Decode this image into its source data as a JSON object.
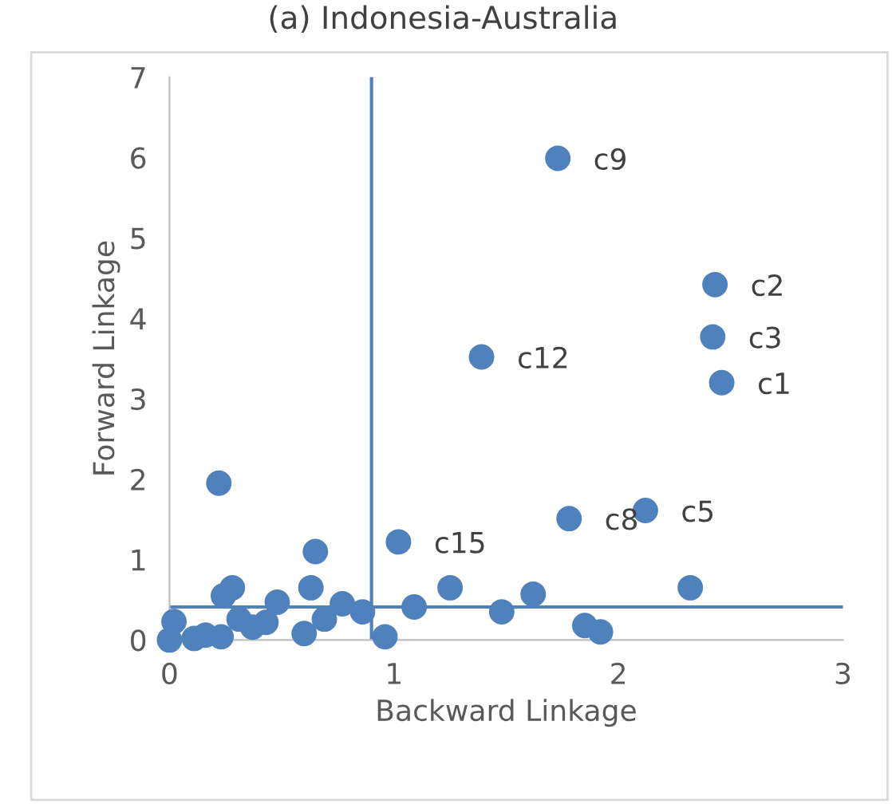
{
  "chart_data": {
    "type": "scatter",
    "title": "(a) Indonesia-Australia",
    "xlabel": "Backward Linkage",
    "ylabel": "Forward Linkage",
    "x": [
      1.73,
      2.43,
      2.42,
      2.46,
      1.39,
      2.12,
      1.78,
      1.02,
      2.32,
      1.62,
      1.85,
      1.92,
      1.25,
      1.09,
      1.48,
      0.96,
      0.86,
      0.77,
      0.69,
      0.6,
      0.63,
      0.65,
      0.48,
      0.43,
      0.37,
      0.31,
      0.28,
      0.24,
      0.22,
      0.02,
      0.0,
      0.11,
      0.16,
      0.23
    ],
    "series": [
      {
        "color": "#4f81bd",
        "values": [
          5.99,
          4.42,
          3.77,
          3.2,
          3.52,
          1.61,
          1.51,
          1.22,
          0.65,
          0.57,
          0.18,
          0.1,
          0.65,
          0.41,
          0.35,
          0.04,
          0.35,
          0.45,
          0.26,
          0.08,
          0.65,
          1.1,
          0.47,
          0.22,
          0.16,
          0.26,
          0.65,
          0.55,
          1.95,
          0.23,
          0.0,
          0.02,
          0.06,
          0.04
        ]
      }
    ],
    "annotations": [
      {
        "text": "c9",
        "x": 1.73,
        "y": 5.99
      },
      {
        "text": "c2",
        "x": 2.43,
        "y": 4.42
      },
      {
        "text": "c3",
        "x": 2.42,
        "y": 3.77
      },
      {
        "text": "c1",
        "x": 2.46,
        "y": 3.2
      },
      {
        "text": "c12",
        "x": 1.39,
        "y": 3.52
      },
      {
        "text": "c5",
        "x": 2.12,
        "y": 1.61
      },
      {
        "text": "c8",
        "x": 1.78,
        "y": 1.51
      },
      {
        "text": "c15",
        "x": 1.02,
        "y": 1.22
      }
    ],
    "ref_lines": [
      {
        "axis": "x",
        "value": 0.9,
        "color": "#4f81bd"
      },
      {
        "axis": "y",
        "value": 0.41,
        "color": "#4f81bd"
      }
    ],
    "xlim": [
      0,
      3
    ],
    "ylim": [
      0,
      7
    ],
    "xticks": [
      0,
      1,
      2,
      3
    ],
    "yticks": [
      0,
      1,
      2,
      3,
      4,
      5,
      6,
      7
    ],
    "marker": "circle",
    "grid": false
  }
}
